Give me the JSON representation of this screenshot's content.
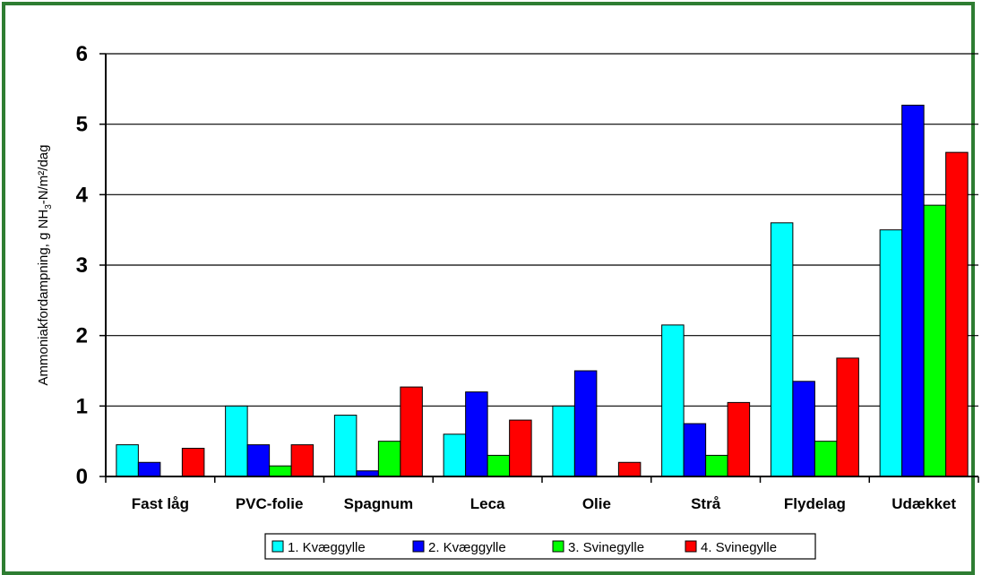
{
  "chart_data": {
    "type": "bar",
    "categories": [
      "Fast låg",
      "PVC-folie",
      "Spagnum",
      "Leca",
      "Olie",
      "Strå",
      "Flydelag",
      "Udækket"
    ],
    "series": [
      {
        "name": "1. Kvæggylle",
        "color": "#00ffff",
        "values": [
          0.45,
          1.0,
          0.87,
          0.6,
          1.0,
          2.15,
          3.6,
          3.5
        ]
      },
      {
        "name": "2. Kvæggylle",
        "color": "#0000ff",
        "values": [
          0.2,
          0.45,
          0.08,
          1.2,
          1.5,
          0.75,
          1.35,
          5.27
        ]
      },
      {
        "name": "3. Svinegylle",
        "color": "#00ff00",
        "values": [
          0,
          0.15,
          0.5,
          0.3,
          0,
          0.3,
          0.5,
          3.85
        ]
      },
      {
        "name": "4. Svinegylle",
        "color": "#ff0000",
        "values": [
          0.4,
          0.45,
          1.27,
          0.8,
          0.2,
          1.05,
          1.68,
          4.6
        ]
      }
    ],
    "ylim": [
      0,
      6
    ],
    "yticks": [
      "0",
      "1",
      "2",
      "3",
      "4",
      "5",
      "6"
    ],
    "ylabel_main": "Ammoniakfordampning, g NH",
    "ylabel_sub": "3",
    "ylabel_tail": "-N/m²/dag",
    "grid": true,
    "legend_position": "bottom"
  }
}
